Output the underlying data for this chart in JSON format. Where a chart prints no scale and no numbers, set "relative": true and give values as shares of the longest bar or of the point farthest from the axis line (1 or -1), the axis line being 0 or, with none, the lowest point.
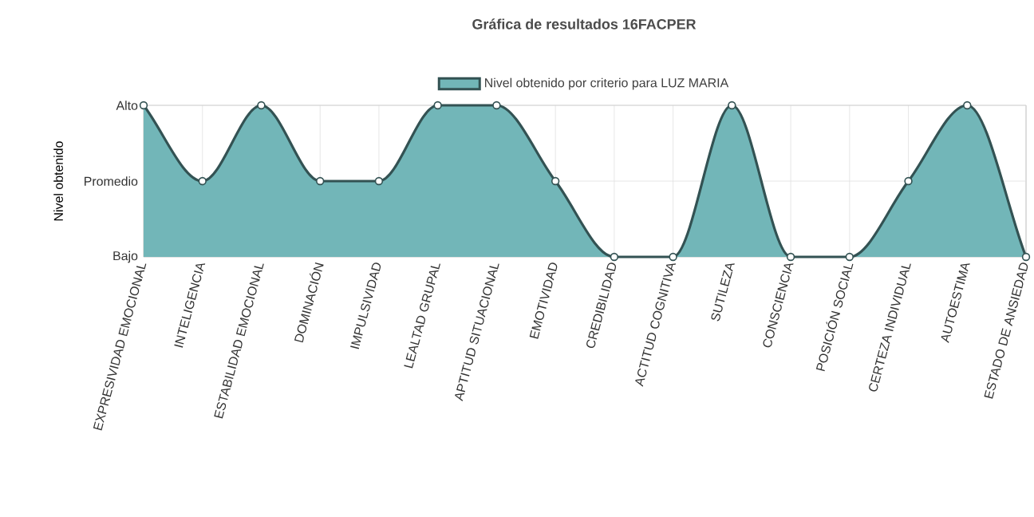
{
  "chart_data": {
    "type": "area",
    "title": "Gráfica de resultados 16FACPER",
    "ylabel": "Nivel obtenido",
    "categories": [
      "EXPRESIVIDAD EMOCIONAL",
      "INTELIGENCIA",
      "ESTABILIDAD EMOCIONAL",
      "DOMINACIÓN",
      "IMPULSIVIDAD",
      "LEALTAD GRUPAL",
      "APTITUD SITUACIONAL",
      "EMOTIVIDAD",
      "CREDIBILIDAD",
      "ACTITUD COGNITIVA",
      "SUTILEZA",
      "CONSCIENCIA",
      "POSICIÓN SOCIAL",
      "CERTEZA INDIVIDUAL",
      "AUTOESTIMA",
      "ESTADO DE ANSIEDAD"
    ],
    "series": [
      {
        "name": "Nivel obtenido por criterio para LUZ MARIA",
        "color": "#72b6b8",
        "values": [
          1,
          0.5,
          1,
          0.5,
          0.5,
          1,
          1,
          0.5,
          0,
          0,
          1,
          0,
          0,
          0.5,
          1,
          0
        ]
      }
    ],
    "relative": true,
    "annotations": [
      "Bajo",
      "Promedio",
      "Alto"
    ],
    "grid": true,
    "legend": "top",
    "marker": "circle",
    "line_style": "solid"
  }
}
